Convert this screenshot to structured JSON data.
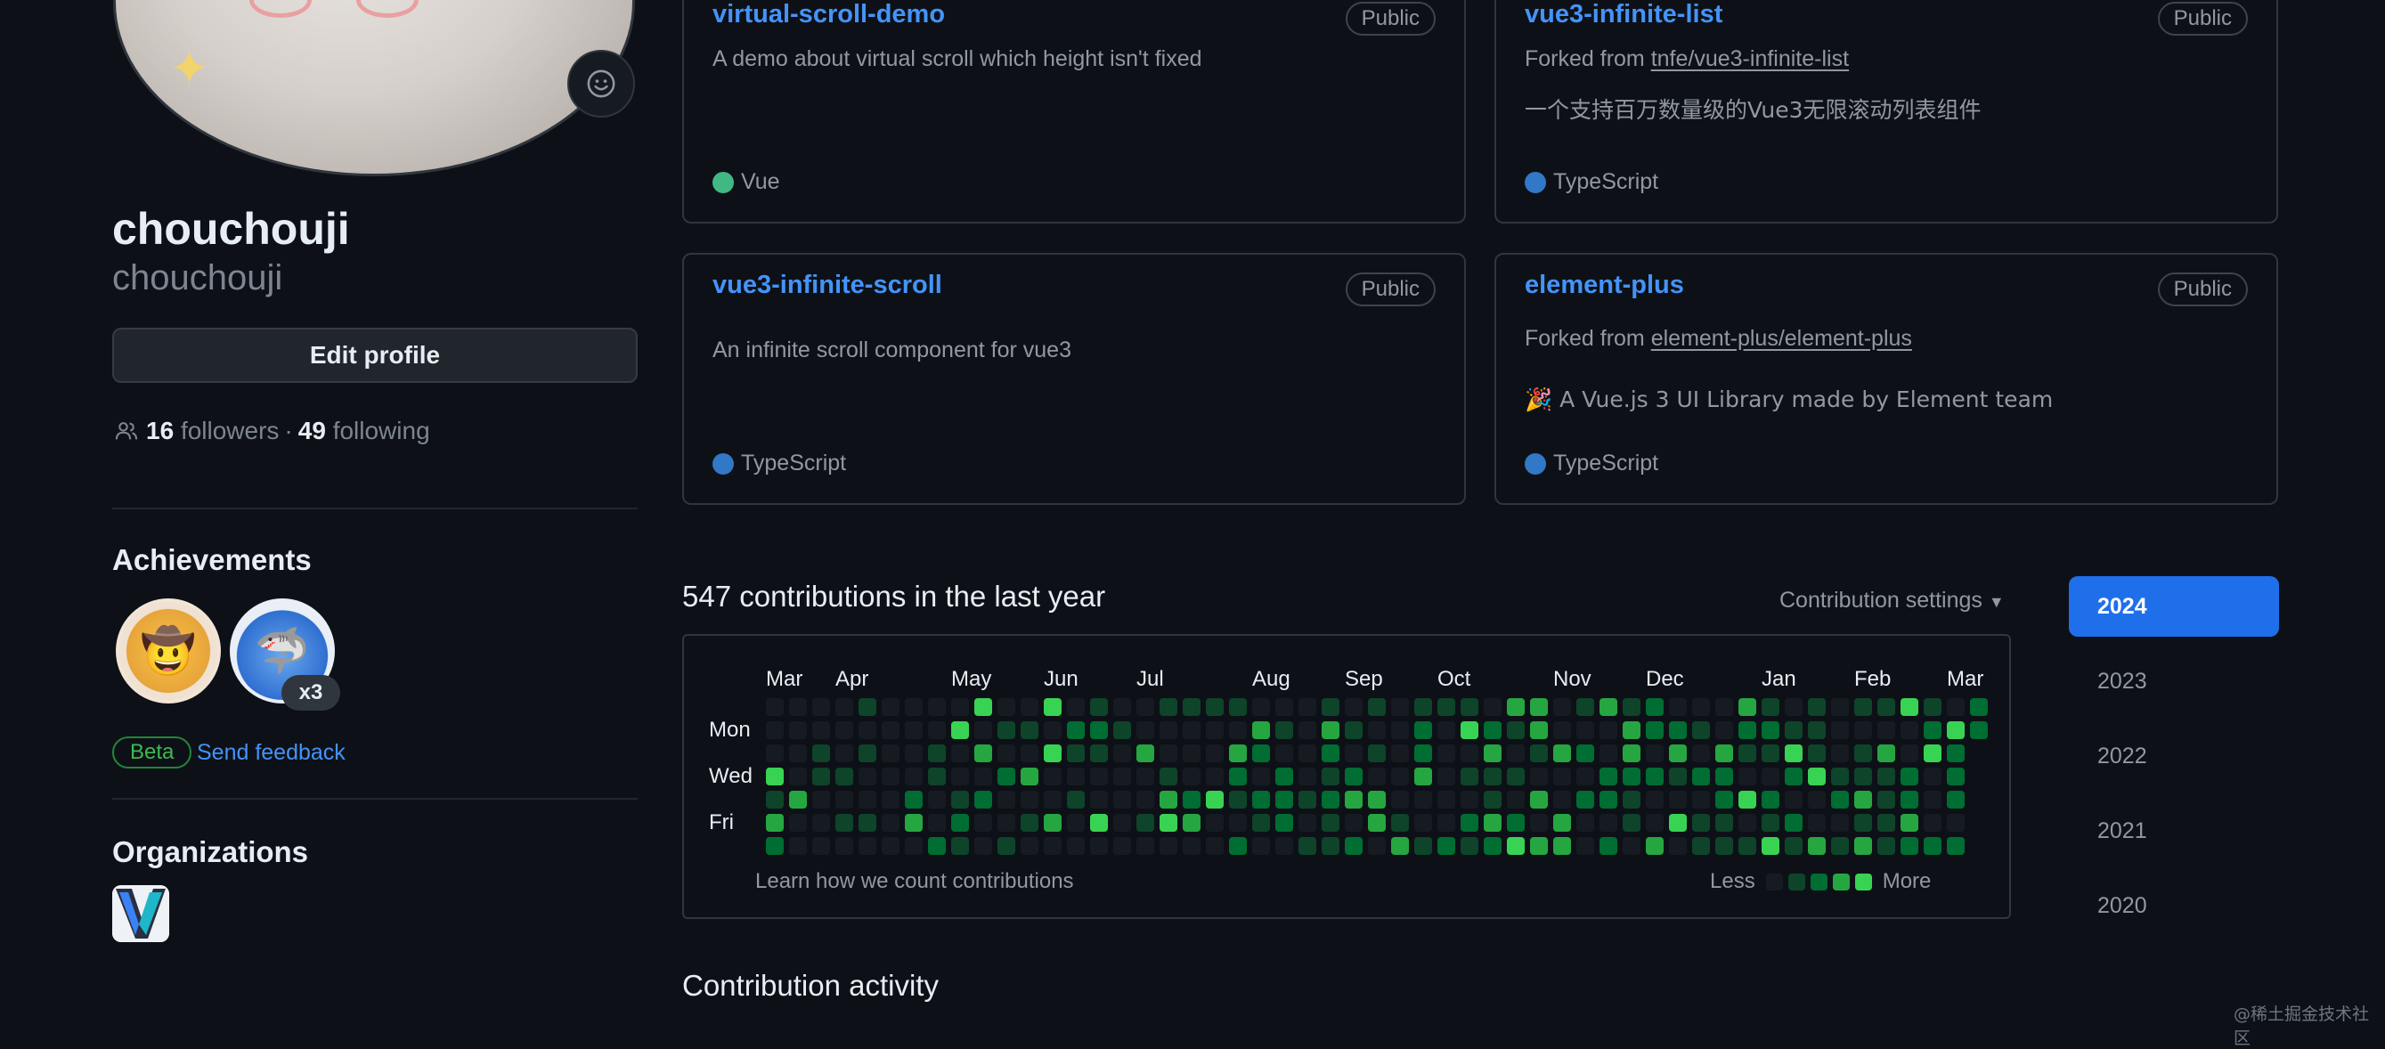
{
  "profile": {
    "display_name": "chouchouji",
    "username": "chouchouji",
    "edit_button": "Edit profile",
    "followers_count": "16",
    "followers_label": "followers",
    "separator": "·",
    "following_count": "49",
    "following_label": "following"
  },
  "achievements": {
    "title": "Achievements",
    "count_badge": "x3",
    "beta_label": "Beta",
    "feedback_link": "Send feedback"
  },
  "organizations": {
    "title": "Organizations"
  },
  "repos": [
    {
      "name": "virtual-scroll-demo",
      "visibility": "Public",
      "forked_prefix": "",
      "forked_from": "",
      "description": "A demo about virtual scroll which height isn't fixed",
      "language": "Vue",
      "language_color": "#41b883"
    },
    {
      "name": "vue3-infinite-list",
      "visibility": "Public",
      "forked_prefix": "Forked from ",
      "forked_from": "tnfe/vue3-infinite-list",
      "description": "一个支持百万数量级的Vue3无限滚动列表组件",
      "language": "TypeScript",
      "language_color": "#3178c6"
    },
    {
      "name": "vue3-infinite-scroll",
      "visibility": "Public",
      "forked_prefix": "",
      "forked_from": "",
      "description": "An infinite scroll component for vue3",
      "language": "TypeScript",
      "language_color": "#3178c6"
    },
    {
      "name": "element-plus",
      "visibility": "Public",
      "forked_prefix": "Forked from ",
      "forked_from": "element-plus/element-plus",
      "description": "🎉 A Vue.js 3 UI Library made by Element team",
      "language": "TypeScript",
      "language_color": "#3178c6"
    }
  ],
  "contributions": {
    "title": "547 contributions in the last year",
    "settings_label": "Contribution settings",
    "months": [
      "Mar",
      "Apr",
      "May",
      "Jun",
      "Jul",
      "Aug",
      "Sep",
      "Oct",
      "Nov",
      "Dec",
      "Jan",
      "Feb",
      "Mar"
    ],
    "days": [
      "Mon",
      "Wed",
      "Fri"
    ],
    "learn_link": "Learn how we count contributions",
    "legend_less": "Less",
    "legend_more": "More",
    "level_colors": [
      "#161b22",
      "#0e4429",
      "#006d32",
      "#26a641",
      "#39d353"
    ]
  },
  "years": [
    "2024",
    "2023",
    "2022",
    "2021",
    "2020"
  ],
  "activity": {
    "title": "Contribution activity"
  },
  "watermark": "@稀土掘金技术社区"
}
